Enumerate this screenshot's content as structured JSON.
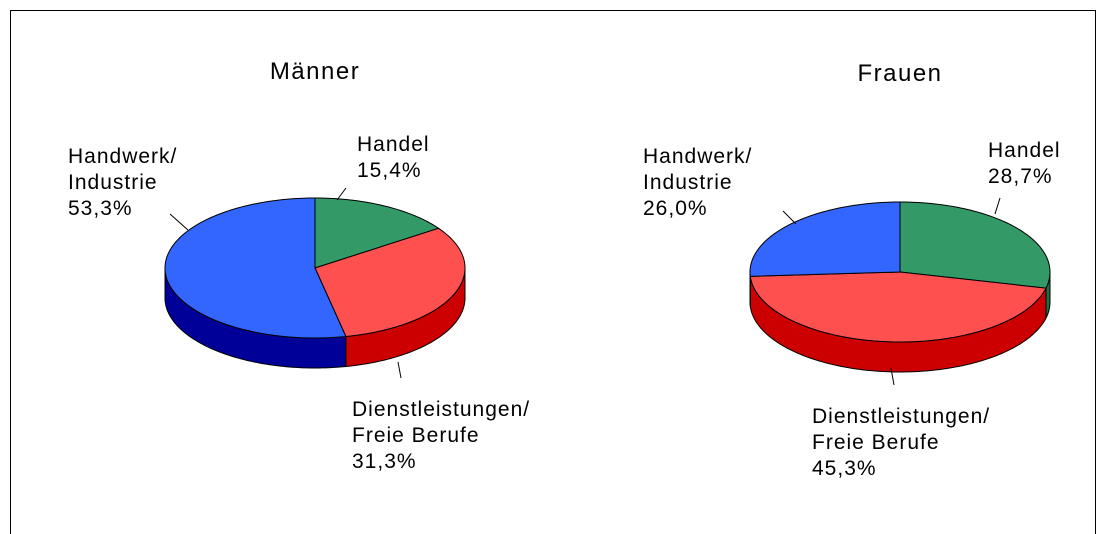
{
  "chart_data": [
    {
      "type": "pie",
      "title": "Männer",
      "categories": [
        "Handel",
        "Dienstleistungen/\nFreie Berufe",
        "Handwerk/\nIndustrie"
      ],
      "values": [
        15.4,
        31.3,
        53.3
      ],
      "value_labels": [
        "15,4%",
        "31,3%",
        "53,3%"
      ],
      "colors": [
        "#339966",
        "#ff5050",
        "#3366ff"
      ],
      "side_colors": [
        "#1f6b44",
        "#cc0000",
        "#000099"
      ]
    },
    {
      "type": "pie",
      "title": "Frauen",
      "categories": [
        "Handel",
        "Dienstleistungen/\nFreie Berufe",
        "Handwerk/\nIndustrie"
      ],
      "values": [
        28.7,
        45.3,
        26.0
      ],
      "value_labels": [
        "28,7%",
        "45,3%",
        "26,0%"
      ],
      "colors": [
        "#339966",
        "#ff5050",
        "#3366ff"
      ],
      "side_colors": [
        "#1f6b44",
        "#cc0000",
        "#000099"
      ]
    }
  ]
}
